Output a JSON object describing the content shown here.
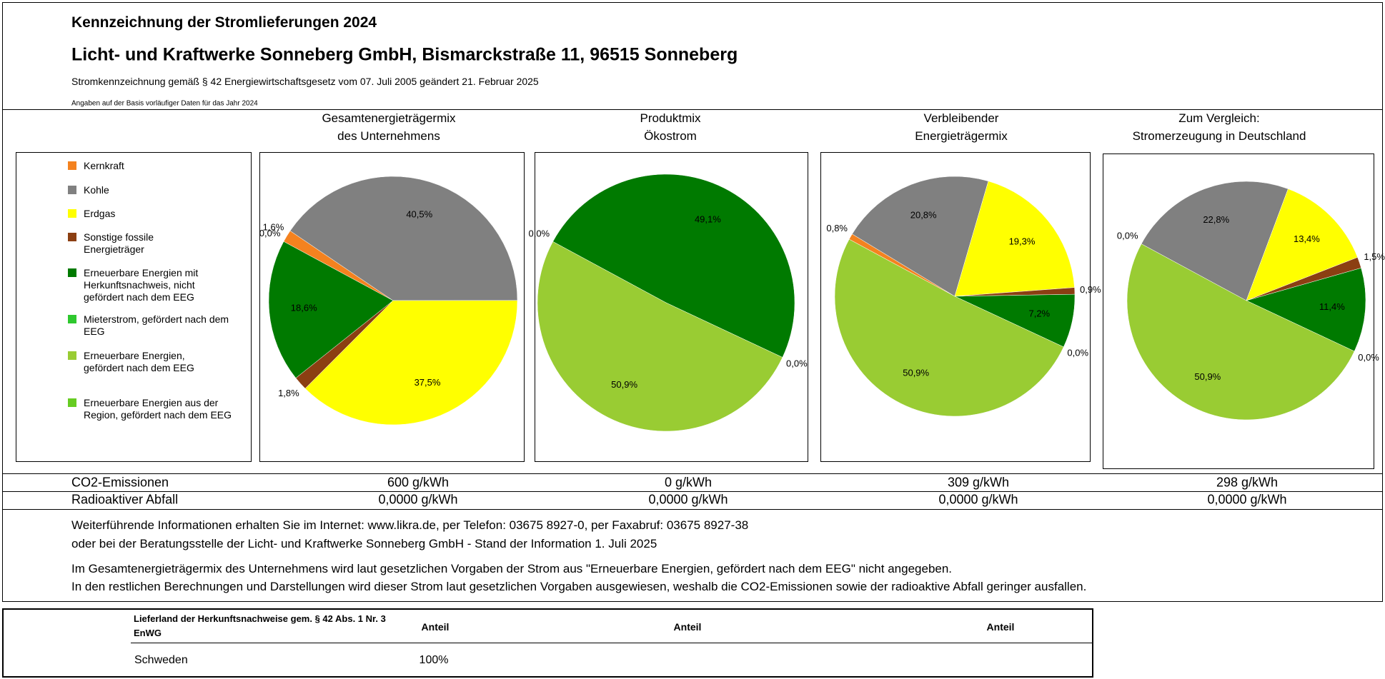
{
  "header": {
    "title": "Kennzeichnung der Stromlieferungen 2024",
    "company": "Licht- und Kraftwerke Sonneberg GmbH, Bismarckstraße 11, 96515 Sonneberg",
    "legal": "Stromkennzeichnung gemäß § 42 Energiewirtschaftsgesetz vom 07. Juli 2005 geändert 21. Februar 2025",
    "basis": "Angaben auf der Basis vorläufiger Daten für das Jahr 2024"
  },
  "legend": {
    "categories": [
      "Kernkraft",
      "Kohle",
      "Erdgas",
      "Sonstige fossile Energieträger",
      "Erneuerbare Energien mit Herkunftsnachweis, nicht gefördert nach dem EEG",
      "Mieterstrom, gefördert nach dem EEG",
      "Erneuerbare Energien, gefördert nach dem EEG",
      "Erneuerbare Energien aus der Region, gefördert nach dem EEG"
    ],
    "colors": [
      "#f4821f",
      "#808080",
      "#ffff00",
      "#8b3f12",
      "#007a00",
      "#2ec82e",
      "#99cc33",
      "#66cc22"
    ]
  },
  "chart_data": [
    {
      "type": "pie",
      "title": [
        "Gesamtenergieträgermix",
        "des Unternehmens"
      ],
      "values": [
        1.6,
        40.5,
        37.5,
        1.8,
        18.6,
        0.0,
        null,
        null
      ],
      "value_labels": [
        "1,6%",
        "40,5%",
        "37,5%",
        "1,8%",
        "18,6%",
        "0,0%",
        null,
        null
      ]
    },
    {
      "type": "pie",
      "title": [
        "Produktmix",
        "Ökostrom"
      ],
      "values": [
        null,
        null,
        null,
        null,
        49.1,
        0.0,
        50.9,
        0.0
      ],
      "value_labels": [
        null,
        null,
        null,
        null,
        "49,1%",
        "0,0%",
        "50,9%",
        "0,0%"
      ]
    },
    {
      "type": "pie",
      "title": [
        "Verbleibender",
        "Energieträgermix"
      ],
      "values": [
        0.8,
        20.8,
        19.3,
        0.9,
        7.2,
        0.0,
        50.9,
        null
      ],
      "value_labels": [
        "0,8%",
        "20,8%",
        "19,3%",
        "0,9%",
        "7,2%",
        "0,0%",
        "50,9%",
        null
      ]
    },
    {
      "type": "pie",
      "title": [
        "Zum Vergleich:",
        "Stromerzeugung in Deutschland"
      ],
      "values": [
        0.0,
        22.8,
        13.4,
        1.5,
        11.4,
        0.0,
        50.9,
        null
      ],
      "value_labels": [
        "0,0%",
        "22,8%",
        "13,4%",
        "1,5%",
        "11,4%",
        "0,0%",
        "50,9%",
        null
      ]
    }
  ],
  "emissions": {
    "rows": [
      {
        "label": "CO2-Emissionen",
        "values": [
          "600 g/kWh",
          "0 g/kWh",
          "309 g/kWh",
          "298 g/kWh"
        ]
      },
      {
        "label": "Radioaktiver Abfall",
        "values": [
          "0,0000 g/kWh",
          "0,0000 g/kWh",
          "0,0000 g/kWh",
          "0,0000 g/kWh"
        ]
      }
    ]
  },
  "info": {
    "lines": [
      "Weiterführende Informationen erhalten Sie im Internet: www.likra.de, per Telefon: 03675 8927-0, per Faxabruf: 03675 8927-38",
      "oder bei der Beratungsstelle der Licht- und Kraftwerke Sonneberg GmbH - Stand der Information 1. Juli 2025",
      "Im Gesamtenergieträgermix des Unternehmens wird laut gesetzlichen Vorgaben der Strom aus \"Erneuerbare Energien, gefördert nach dem EEG\" nicht angegeben.",
      "In den restlichen Berechnungen und Darstellungen wird dieser Strom laut gesetzlichen Vorgaben ausgewiesen, weshalb die CO2-Emissionen sowie der radioaktive Abfall geringer ausfallen."
    ]
  },
  "origin_table": {
    "headers": [
      "Lieferland der Herkunftsnachweise gem. § 42 Abs. 1 Nr. 3 EnWG",
      "Anteil",
      "Anteil",
      "Anteil"
    ],
    "rows": [
      [
        "Schweden",
        "100%"
      ]
    ]
  }
}
